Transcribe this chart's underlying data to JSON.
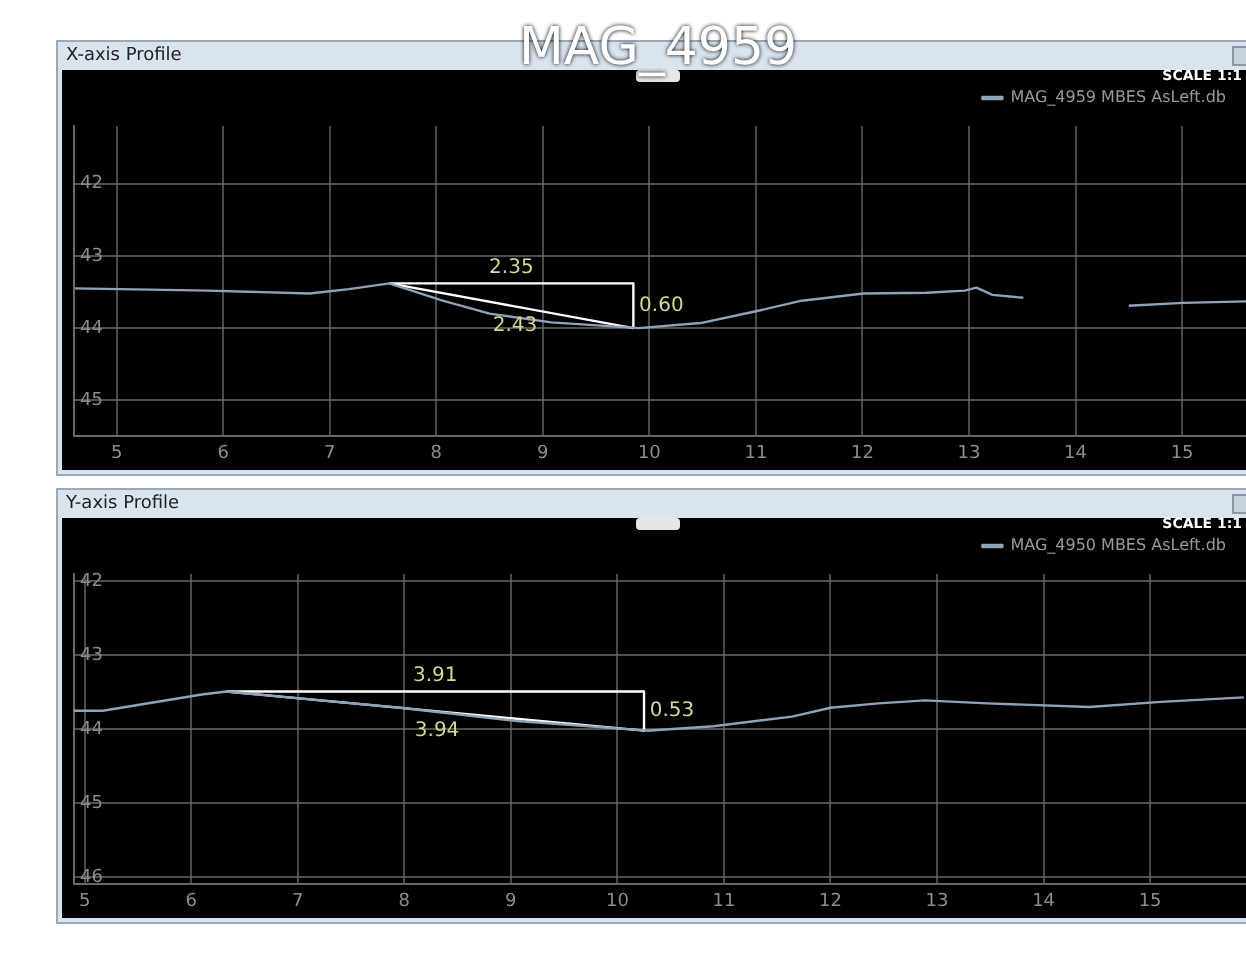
{
  "chart_data": [
    {
      "type": "line",
      "title": "X-axis Profile",
      "annotations": [
        "MAG_4959",
        "SCALE 1:1",
        {
          "text": "2.35",
          "x": 8.705,
          "y": 43.38
        },
        {
          "text": "0.60",
          "x": 9.85,
          "y": 43.69
        },
        {
          "text": "2.43",
          "x": 8.705,
          "y": 43.69
        }
      ],
      "xlim": [
        4.6,
        15.6
      ],
      "xticks": [
        5,
        6,
        7,
        8,
        9,
        10,
        11,
        12,
        13,
        14,
        15
      ],
      "ylim": [
        45.5,
        41.2
      ],
      "yticks": [
        42,
        43,
        44,
        45
      ],
      "grid": true,
      "legend": "top right",
      "marker": "none",
      "series": [
        {
          "name": "MAG_4959 MBES AsLeft.db",
          "color": "#8fa3b8",
          "x": [
            4.61,
            5.86,
            6.81,
            7.18,
            7.56,
            8.06,
            8.5,
            9.08,
            9.9,
            10.48,
            10.99,
            11.43,
            12.01,
            12.6,
            12.96,
            13.07,
            13.22,
            13.51,
            14.0,
            14.5,
            15.01,
            15.6
          ],
          "values": [
            43.45,
            43.48,
            43.52,
            43.46,
            43.38,
            43.62,
            43.8,
            43.92,
            44.0,
            43.93,
            43.77,
            43.62,
            43.52,
            43.51,
            43.48,
            43.44,
            43.54,
            43.58,
            null,
            43.69,
            43.65,
            43.63
          ]
        },
        {
          "color": "#ffffff",
          "x": [
            7.56,
            9.85
          ],
          "values": [
            43.38,
            43.38
          ]
        },
        {
          "color": "#ffffff",
          "x": [
            9.85,
            9.85
          ],
          "values": [
            43.38,
            44.0
          ]
        },
        {
          "color": "#ffffff",
          "x": [
            7.56,
            9.85
          ],
          "values": [
            43.38,
            44.0
          ]
        }
      ]
    },
    {
      "type": "line",
      "title": "Y-axis Profile",
      "annotations": [
        "SCALE 1:1",
        {
          "text": "3.91",
          "x": 8.29,
          "y": 43.49
        },
        {
          "text": "0.53",
          "x": 10.25,
          "y": 43.755
        },
        {
          "text": "3.94",
          "x": 8.29,
          "y": 43.755
        }
      ],
      "xlim": [
        4.9,
        15.9
      ],
      "xticks": [
        5,
        6,
        7,
        8,
        9,
        10,
        11,
        12,
        13,
        14,
        15
      ],
      "ylim": [
        46.1,
        41.9
      ],
      "yticks": [
        42,
        43,
        44,
        45,
        46
      ],
      "grid": true,
      "legend": "top right",
      "marker": "none",
      "series": [
        {
          "name": "MAG_4950 MBES AsLeft.db",
          "color": "#8fa3b8",
          "x": [
            4.9,
            5.17,
            6.1,
            6.33,
            7.96,
            9.06,
            10.28,
            10.9,
            11.64,
            12.0,
            12.45,
            12.89,
            13.47,
            14.43,
            15.1,
            15.88
          ],
          "values": [
            43.75,
            43.75,
            43.53,
            43.49,
            43.71,
            43.89,
            44.02,
            43.96,
            43.83,
            43.71,
            43.65,
            43.61,
            43.65,
            43.7,
            43.63,
            43.57
          ]
        },
        {
          "color": "#ffffff",
          "x": [
            6.33,
            10.25
          ],
          "values": [
            43.49,
            43.49
          ]
        },
        {
          "color": "#ffffff",
          "x": [
            10.25,
            10.25
          ],
          "values": [
            43.49,
            44.02
          ]
        },
        {
          "color": "#ffffff",
          "x": [
            6.33,
            10.25
          ],
          "values": [
            43.49,
            44.02
          ]
        }
      ]
    }
  ]
}
